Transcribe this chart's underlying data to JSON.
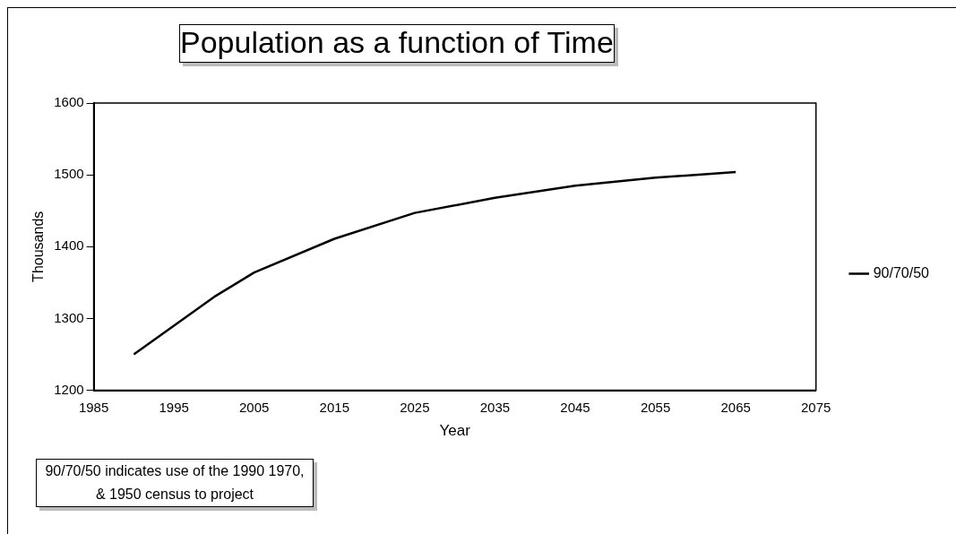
{
  "chart_data": {
    "type": "line",
    "title": "Population as a function of Time",
    "xlabel": "Year",
    "ylabel": "Thousands",
    "x": [
      1990,
      1995,
      2000,
      2005,
      2015,
      2025,
      2035,
      2045,
      2055,
      2065
    ],
    "series": [
      {
        "name": "90/70/50",
        "color": "#000000",
        "values": [
          1250,
          1290,
          1330,
          1364,
          1411,
          1447,
          1468,
          1485,
          1496,
          1504
        ]
      }
    ],
    "xlim": [
      1985,
      2075
    ],
    "xticks": [
      1985,
      1995,
      2005,
      2015,
      2025,
      2035,
      2045,
      2055,
      2065,
      2075
    ],
    "ylim": [
      1200,
      1600
    ],
    "yticks": [
      1200,
      1300,
      1400,
      1500,
      1600
    ],
    "grid": false,
    "legend": "right",
    "marker": "none",
    "line_style": "solid",
    "annotations": [
      "90/70/50 indicates use of the 1990 1970, & 1950 census to project"
    ]
  }
}
